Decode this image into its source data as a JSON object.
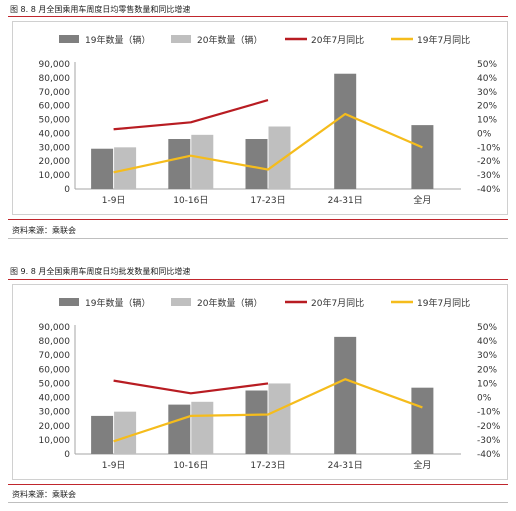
{
  "colors": {
    "bar2019": "#7f7f7f",
    "bar2020": "#bfbfbf",
    "line2020yoy": "#b81c22",
    "line2019yoy": "#f5bc1c",
    "accent_rule": "#c0262d"
  },
  "figures": [
    {
      "title": "图 8. 8 月全国乘用车周度日均零售数量和同比增速",
      "source": "资料来源：乘联会",
      "chart_data": {
        "type": "bar",
        "categories": [
          "1-9日",
          "10-16日",
          "17-23日",
          "24-31日",
          "全月"
        ],
        "left_axis": {
          "ylim": [
            0,
            90000
          ],
          "ticks": [
            "0",
            "10,000",
            "20,000",
            "30,000",
            "40,000",
            "50,000",
            "60,000",
            "70,000",
            "80,000",
            "90,000"
          ]
        },
        "right_axis": {
          "ylim": [
            -40,
            50
          ],
          "ticks": [
            "-40%",
            "-30%",
            "-20%",
            "-10%",
            "0%",
            "10%",
            "20%",
            "30%",
            "40%",
            "50%"
          ]
        },
        "legend_position": "top",
        "series": [
          {
            "name": "19年数量（辆）",
            "kind": "bar",
            "axis": "left",
            "values": [
              29000,
              36000,
              36000,
              83000,
              46000
            ]
          },
          {
            "name": "20年数量（辆）",
            "kind": "bar",
            "axis": "left",
            "values": [
              30000,
              39000,
              45000,
              null,
              null
            ]
          },
          {
            "name": "20年7月同比",
            "kind": "line",
            "axis": "right",
            "values": [
              3,
              8,
              24,
              null,
              null
            ]
          },
          {
            "name": "19年7月同比",
            "kind": "line",
            "axis": "right",
            "values": [
              -28,
              -16,
              -26,
              14,
              -10
            ]
          }
        ]
      }
    },
    {
      "title": "图 9. 8 月全国乘用车周度日均批发数量和同比增速",
      "source": "资料来源：乘联会",
      "chart_data": {
        "type": "bar",
        "categories": [
          "1-9日",
          "10-16日",
          "17-23日",
          "24-31日",
          "全月"
        ],
        "left_axis": {
          "ylim": [
            0,
            90000
          ],
          "ticks": [
            "0",
            "10,000",
            "20,000",
            "30,000",
            "40,000",
            "50,000",
            "60,000",
            "70,000",
            "80,000",
            "90,000"
          ]
        },
        "right_axis": {
          "ylim": [
            -40,
            50
          ],
          "ticks": [
            "-40%",
            "-30%",
            "-20%",
            "-10%",
            "0%",
            "10%",
            "20%",
            "30%",
            "40%",
            "50%"
          ]
        },
        "legend_position": "top",
        "series": [
          {
            "name": "19年数量（辆）",
            "kind": "bar",
            "axis": "left",
            "values": [
              27000,
              35000,
              45000,
              83000,
              47000
            ]
          },
          {
            "name": "20年数量（辆）",
            "kind": "bar",
            "axis": "left",
            "values": [
              30000,
              37000,
              50000,
              null,
              null
            ]
          },
          {
            "name": "20年7月同比",
            "kind": "line",
            "axis": "right",
            "values": [
              12,
              3,
              10,
              null,
              null
            ]
          },
          {
            "name": "19年7月同比",
            "kind": "line",
            "axis": "right",
            "values": [
              -31,
              -13,
              -12,
              13,
              -7
            ]
          }
        ]
      }
    }
  ]
}
